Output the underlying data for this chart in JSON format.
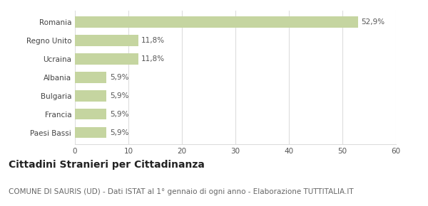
{
  "categories": [
    "Paesi Bassi",
    "Francia",
    "Bulgaria",
    "Albania",
    "Ucraina",
    "Regno Unito",
    "Romania"
  ],
  "values": [
    5.9,
    5.9,
    5.9,
    5.9,
    11.8,
    11.8,
    52.9
  ],
  "labels": [
    "5,9%",
    "5,9%",
    "5,9%",
    "5,9%",
    "11,8%",
    "11,8%",
    "52,9%"
  ],
  "bar_color": "#c5d5a0",
  "background_color": "#ffffff",
  "xlim": [
    0,
    60
  ],
  "xticks": [
    0,
    10,
    20,
    30,
    40,
    50,
    60
  ],
  "title": "Cittadini Stranieri per Cittadinanza",
  "subtitle": "COMUNE DI SAURIS (UD) - Dati ISTAT al 1° gennaio di ogni anno - Elaborazione TUTTITALIA.IT",
  "title_fontsize": 10,
  "subtitle_fontsize": 7.5,
  "label_fontsize": 7.5,
  "tick_fontsize": 7.5,
  "bar_height": 0.6,
  "grid_color": "#dddddd"
}
